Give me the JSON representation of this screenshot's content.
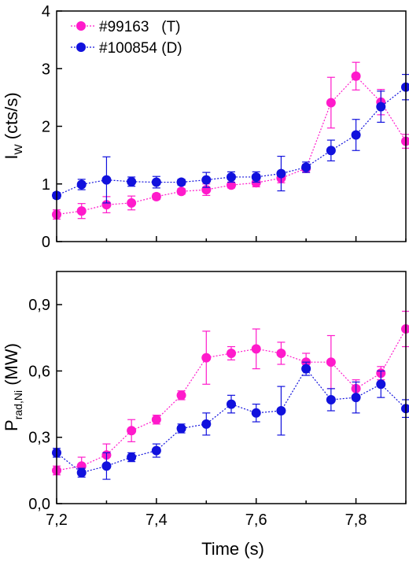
{
  "chart_data": [
    {
      "type": "scatter",
      "panel": "top",
      "xlabel": "",
      "ylabel_main": "I",
      "ylabel_sub": "W",
      "ylabel_rest": " (cts/s)",
      "xlim": [
        7.2,
        7.9
      ],
      "ylim": [
        0,
        4
      ],
      "yticks": [
        0,
        1,
        2,
        3,
        4
      ],
      "ytick_labels": [
        "0",
        "1",
        "2",
        "3",
        "4"
      ],
      "xticks": [
        7.2,
        7.4,
        7.6,
        7.8
      ],
      "grid": false,
      "legend_position": "top-left",
      "x": [
        7.2,
        7.25,
        7.3,
        7.35,
        7.4,
        7.45,
        7.5,
        7.55,
        7.6,
        7.65,
        7.7,
        7.75,
        7.8,
        7.85,
        7.9
      ],
      "series": [
        {
          "name": "#99163   (T)",
          "color": "#ff1acb",
          "values": [
            0.47,
            0.53,
            0.64,
            0.67,
            0.78,
            0.87,
            0.9,
            0.98,
            1.02,
            1.1,
            1.27,
            2.41,
            2.87,
            2.42,
            1.74
          ],
          "errors": [
            0.08,
            0.13,
            0.14,
            0.12,
            0.05,
            0.05,
            0.1,
            0.05,
            0.07,
            0.08,
            0.07,
            0.44,
            0.24,
            0.22,
            0.12
          ]
        },
        {
          "name": "#100854 (D)",
          "color": "#1111dd",
          "values": [
            0.8,
            0.99,
            1.07,
            1.04,
            1.03,
            1.03,
            1.07,
            1.12,
            1.12,
            1.18,
            1.29,
            1.58,
            1.85,
            2.34,
            2.68
          ],
          "errors": [
            0.05,
            0.09,
            0.4,
            0.08,
            0.1,
            0.05,
            0.13,
            0.09,
            0.09,
            0.3,
            0.09,
            0.18,
            0.27,
            0.27,
            0.22
          ]
        }
      ]
    },
    {
      "type": "scatter",
      "panel": "bottom",
      "xlabel": "Time (s)",
      "ylabel_main": "P",
      "ylabel_sub": "rad,Ni",
      "ylabel_rest": " (MW)",
      "xlim": [
        7.2,
        7.9
      ],
      "ylim": [
        0,
        1.05
      ],
      "yticks": [
        0,
        0.3,
        0.6,
        0.9
      ],
      "ytick_labels": [
        "0,0",
        "0,3",
        "0,6",
        "0,9"
      ],
      "xticks": [
        7.2,
        7.4,
        7.6,
        7.8
      ],
      "xtick_labels": [
        "7,2",
        "7,4",
        "7,6",
        "7,8"
      ],
      "grid": false,
      "x": [
        7.2,
        7.25,
        7.3,
        7.35,
        7.4,
        7.45,
        7.5,
        7.55,
        7.6,
        7.65,
        7.7,
        7.75,
        7.8,
        7.85,
        7.9
      ],
      "series": [
        {
          "color": "#ff1acb",
          "values": [
            0.15,
            0.17,
            0.22,
            0.33,
            0.38,
            0.49,
            0.66,
            0.68,
            0.7,
            0.68,
            0.64,
            0.64,
            0.52,
            0.59,
            0.79
          ],
          "errors": [
            0.02,
            0.04,
            0.05,
            0.05,
            0.02,
            0.02,
            0.12,
            0.03,
            0.09,
            0.05,
            0.04,
            0.12,
            0.04,
            0.03,
            0.08
          ]
        },
        {
          "color": "#1111dd",
          "values": [
            0.23,
            0.14,
            0.17,
            0.21,
            0.24,
            0.34,
            0.36,
            0.45,
            0.41,
            0.42,
            0.61,
            0.47,
            0.48,
            0.54,
            0.43
          ],
          "errors": [
            0.02,
            0.02,
            0.06,
            0.02,
            0.03,
            0.02,
            0.05,
            0.04,
            0.04,
            0.11,
            0.03,
            0.05,
            0.07,
            0.06,
            0.04
          ]
        }
      ]
    }
  ]
}
